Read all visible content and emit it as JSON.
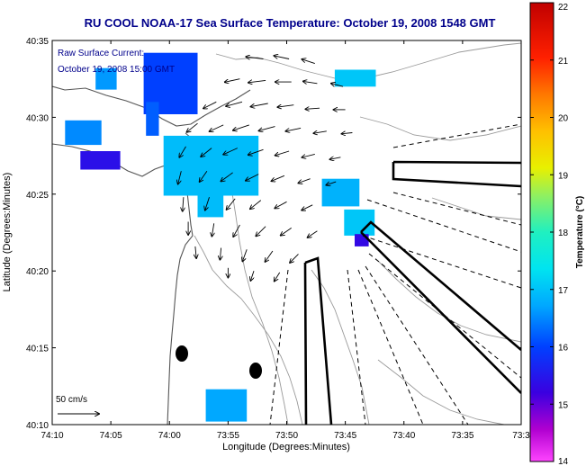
{
  "chart_data": {
    "type": "heatmap",
    "title": "RU COOL  NOAA-17  Sea Surface Temperature:  October 19, 2008 1548 GMT",
    "annotation_line1": "Raw Surface Current:",
    "annotation_line2": "October 19, 2008 15:00 GMT",
    "xlabel": "Longitude (Degrees:Minutes)",
    "ylabel": "Latitude (Degrees:Minutes)",
    "xlim_minutes_west": [
      -4450,
      -4410
    ],
    "ylim_minutes_north": [
      2410,
      2435
    ],
    "xticks": [
      {
        "value": -4450,
        "label": "74:10"
      },
      {
        "value": -4445,
        "label": "74:05"
      },
      {
        "value": -4440,
        "label": "74:00"
      },
      {
        "value": -4435,
        "label": "73:55"
      },
      {
        "value": -4430,
        "label": "73:50"
      },
      {
        "value": -4425,
        "label": "73:45"
      },
      {
        "value": -4420,
        "label": "73:40"
      },
      {
        "value": -4415,
        "label": "73:35"
      },
      {
        "value": -4410,
        "label": "73:3"
      }
    ],
    "yticks": [
      {
        "value": 2410,
        "label": "40:10"
      },
      {
        "value": 2415,
        "label": "40:15"
      },
      {
        "value": 2420,
        "label": "40:20"
      },
      {
        "value": 2425,
        "label": "40:25"
      },
      {
        "value": 2430,
        "label": "40:30"
      },
      {
        "value": 2435,
        "label": "40:35"
      }
    ],
    "colorbar": {
      "label": "Temperature (°C)",
      "range": [
        14,
        22
      ],
      "ticks": [
        "22",
        "21",
        "20",
        "19",
        "18",
        "17",
        "16",
        "15",
        "14"
      ]
    },
    "scale_vector": {
      "label": "50 cm/s",
      "speed_cm_s": 50
    },
    "sst_patches": [
      {
        "lon": [
          -4446.3,
          -4444.5
        ],
        "lat": [
          2431.8,
          2433.2
        ],
        "temp": 16.6
      },
      {
        "lon": [
          -4442.2,
          -4437.6
        ],
        "lat": [
          2430.2,
          2434.2
        ],
        "temp": 16.0
      },
      {
        "lon": [
          -4442.0,
          -4440.9
        ],
        "lat": [
          2428.8,
          2431.0
        ],
        "temp": 16.2
      },
      {
        "lon": [
          -4448.9,
          -4445.8
        ],
        "lat": [
          2428.2,
          2429.8
        ],
        "temp": 16.5
      },
      {
        "lon": [
          -4447.6,
          -4444.2
        ],
        "lat": [
          2426.6,
          2427.8
        ],
        "temp": 15.4
      },
      {
        "lon": [
          -4440.5,
          -4432.4
        ],
        "lat": [
          2424.9,
          2428.8
        ],
        "temp": 16.9
      },
      {
        "lon": [
          -4437.6,
          -4435.4
        ],
        "lat": [
          2423.5,
          2425.2
        ],
        "temp": 16.9
      },
      {
        "lon": [
          -4427.0,
          -4423.8
        ],
        "lat": [
          2424.2,
          2426.0
        ],
        "temp": 16.8
      },
      {
        "lon": [
          -4425.1,
          -4422.5
        ],
        "lat": [
          2422.3,
          2424.0
        ],
        "temp": 17.0
      },
      {
        "lon": [
          -4424.2,
          -4423.0
        ],
        "lat": [
          2421.6,
          2422.4
        ],
        "temp": 15.3
      },
      {
        "lon": [
          -4425.9,
          -4422.4
        ],
        "lat": [
          2432.0,
          2433.1
        ],
        "temp": 17.0
      },
      {
        "lon": [
          -4436.9,
          -4433.4
        ],
        "lat": [
          2410.2,
          2412.3
        ],
        "temp": 16.7
      }
    ],
    "current_vectors": [
      {
        "lon": -4432.0,
        "lat": 2433.8,
        "u": -16,
        "v": 2
      },
      {
        "lon": -4429.8,
        "lat": 2433.8,
        "u": -14,
        "v": 3
      },
      {
        "lon": -4427.6,
        "lat": 2433.5,
        "u": -12,
        "v": 4
      },
      {
        "lon": -4434.0,
        "lat": 2432.5,
        "u": -14,
        "v": -3
      },
      {
        "lon": -4431.8,
        "lat": 2432.4,
        "u": -16,
        "v": -2
      },
      {
        "lon": -4429.6,
        "lat": 2432.3,
        "u": -15,
        "v": 0
      },
      {
        "lon": -4427.4,
        "lat": 2432.2,
        "u": -13,
        "v": 2
      },
      {
        "lon": -4425.2,
        "lat": 2432.0,
        "u": -11,
        "v": 3
      },
      {
        "lon": -4436.0,
        "lat": 2431.0,
        "u": -12,
        "v": -6
      },
      {
        "lon": -4433.8,
        "lat": 2431.0,
        "u": -15,
        "v": -4
      },
      {
        "lon": -4431.6,
        "lat": 2430.9,
        "u": -16,
        "v": -3
      },
      {
        "lon": -4429.4,
        "lat": 2430.8,
        "u": -15,
        "v": -2
      },
      {
        "lon": -4427.2,
        "lat": 2430.6,
        "u": -13,
        "v": -1
      },
      {
        "lon": -4425.0,
        "lat": 2430.5,
        "u": -11,
        "v": 0
      },
      {
        "lon": -4437.6,
        "lat": 2429.6,
        "u": -10,
        "v": -8
      },
      {
        "lon": -4435.4,
        "lat": 2429.5,
        "u": -13,
        "v": -6
      },
      {
        "lon": -4433.2,
        "lat": 2429.5,
        "u": -15,
        "v": -5
      },
      {
        "lon": -4431.0,
        "lat": 2429.4,
        "u": -15,
        "v": -4
      },
      {
        "lon": -4428.8,
        "lat": 2429.3,
        "u": -14,
        "v": -3
      },
      {
        "lon": -4426.6,
        "lat": 2429.1,
        "u": -12,
        "v": -2
      },
      {
        "lon": -4424.4,
        "lat": 2429.0,
        "u": -10,
        "v": -1
      },
      {
        "lon": -4438.6,
        "lat": 2428.1,
        "u": -6,
        "v": -10
      },
      {
        "lon": -4436.4,
        "lat": 2428.0,
        "u": -10,
        "v": -8
      },
      {
        "lon": -4434.2,
        "lat": 2428.0,
        "u": -13,
        "v": -6
      },
      {
        "lon": -4432.0,
        "lat": 2427.9,
        "u": -14,
        "v": -5
      },
      {
        "lon": -4429.8,
        "lat": 2427.8,
        "u": -13,
        "v": -4
      },
      {
        "lon": -4427.6,
        "lat": 2427.6,
        "u": -12,
        "v": -3
      },
      {
        "lon": -4425.4,
        "lat": 2427.4,
        "u": -10,
        "v": -2
      },
      {
        "lon": -4439.0,
        "lat": 2426.5,
        "u": -3,
        "v": -12
      },
      {
        "lon": -4436.8,
        "lat": 2426.5,
        "u": -7,
        "v": -10
      },
      {
        "lon": -4434.6,
        "lat": 2426.4,
        "u": -11,
        "v": -8
      },
      {
        "lon": -4432.4,
        "lat": 2426.3,
        "u": -12,
        "v": -6
      },
      {
        "lon": -4430.2,
        "lat": 2426.2,
        "u": -12,
        "v": -5
      },
      {
        "lon": -4428.0,
        "lat": 2426.0,
        "u": -11,
        "v": -4
      },
      {
        "lon": -4425.8,
        "lat": 2425.8,
        "u": -9,
        "v": -3
      },
      {
        "lon": -4438.8,
        "lat": 2424.8,
        "u": -1,
        "v": -13
      },
      {
        "lon": -4436.6,
        "lat": 2424.8,
        "u": -4,
        "v": -12
      },
      {
        "lon": -4434.4,
        "lat": 2424.7,
        "u": -8,
        "v": -10
      },
      {
        "lon": -4432.2,
        "lat": 2424.6,
        "u": -10,
        "v": -8
      },
      {
        "lon": -4430.0,
        "lat": 2424.5,
        "u": -11,
        "v": -6
      },
      {
        "lon": -4427.8,
        "lat": 2424.3,
        "u": -10,
        "v": -5
      },
      {
        "lon": -4438.4,
        "lat": 2423.2,
        "u": 0,
        "v": -12
      },
      {
        "lon": -4436.2,
        "lat": 2423.1,
        "u": -2,
        "v": -12
      },
      {
        "lon": -4434.0,
        "lat": 2423.0,
        "u": -6,
        "v": -11
      },
      {
        "lon": -4431.8,
        "lat": 2422.9,
        "u": -9,
        "v": -9
      },
      {
        "lon": -4429.6,
        "lat": 2422.8,
        "u": -10,
        "v": -7
      },
      {
        "lon": -4427.4,
        "lat": 2422.6,
        "u": -9,
        "v": -6
      },
      {
        "lon": -4437.8,
        "lat": 2421.6,
        "u": 1,
        "v": -11
      },
      {
        "lon": -4435.6,
        "lat": 2421.5,
        "u": -1,
        "v": -11
      },
      {
        "lon": -4433.4,
        "lat": 2421.4,
        "u": -4,
        "v": -11
      },
      {
        "lon": -4431.2,
        "lat": 2421.3,
        "u": -7,
        "v": -10
      },
      {
        "lon": -4429.0,
        "lat": 2421.1,
        "u": -8,
        "v": -8
      },
      {
        "lon": -4435.0,
        "lat": 2420.2,
        "u": 0,
        "v": -9
      },
      {
        "lon": -4432.8,
        "lat": 2420.0,
        "u": -3,
        "v": -9
      },
      {
        "lon": -4430.6,
        "lat": 2419.9,
        "u": -5,
        "v": -8
      }
    ]
  }
}
